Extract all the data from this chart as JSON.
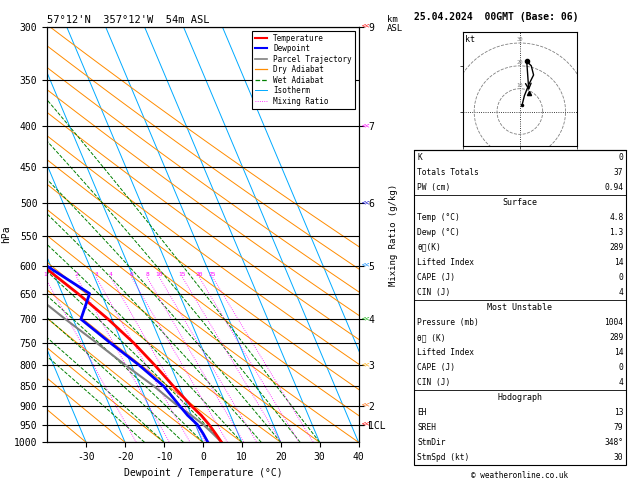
{
  "title_left": "57°12'N  357°12'W  54m ASL",
  "title_right": "25.04.2024  00GMT (Base: 06)",
  "xlabel": "Dewpoint / Temperature (°C)",
  "ylabel_left": "hPa",
  "ylabel_right_mr": "Mixing Ratio (g/kg)",
  "pressure_levels": [
    300,
    350,
    400,
    450,
    500,
    550,
    600,
    650,
    700,
    750,
    800,
    850,
    900,
    950,
    1000
  ],
  "T_min": -40,
  "T_max": 40,
  "skew_factor": 45,
  "temp_profile": {
    "pressure": [
      1000,
      975,
      950,
      925,
      900,
      850,
      800,
      750,
      700,
      650,
      600,
      550,
      500,
      450,
      400,
      350,
      300
    ],
    "temp": [
      4.8,
      4.2,
      3.5,
      2.5,
      1.0,
      -1.5,
      -4.0,
      -7.0,
      -11.0,
      -16.0,
      -22.0,
      -28.0,
      -34.0,
      -41.0,
      -49.0,
      -58.0,
      -48.0
    ]
  },
  "dewpoint_profile": {
    "pressure": [
      1000,
      975,
      950,
      925,
      900,
      850,
      800,
      750,
      700,
      650,
      600,
      550,
      500,
      450,
      400,
      350,
      300
    ],
    "temp": [
      1.3,
      1.0,
      0.5,
      -1.0,
      -2.0,
      -4.0,
      -8.0,
      -13.0,
      -18.0,
      -13.0,
      -21.0,
      -28.0,
      -34.0,
      -41.0,
      -49.0,
      -58.0,
      -48.0
    ]
  },
  "parcel_trajectory": {
    "pressure": [
      1000,
      975,
      950,
      925,
      900,
      850,
      800,
      750,
      700,
      650,
      600,
      550,
      500,
      450,
      400,
      350,
      300
    ],
    "temp": [
      4.8,
      3.5,
      2.0,
      0.0,
      -2.5,
      -6.5,
      -11.5,
      -16.5,
      -22.0,
      -27.5,
      -33.5,
      -39.5,
      -46.0,
      -52.5,
      -59.0,
      -65.0,
      -55.0
    ]
  },
  "colors": {
    "temperature": "#ff0000",
    "dewpoint": "#0000ff",
    "parcel": "#808080",
    "dry_adiabat": "#ff8c00",
    "wet_adiabat": "#008000",
    "isotherm": "#00aaff",
    "mixing_ratio": "#ff00ff",
    "isobar": "#000000",
    "background": "#ffffff"
  },
  "dry_adiabat_thetas": [
    -30,
    -20,
    -10,
    0,
    10,
    20,
    30,
    40,
    50,
    60,
    70,
    80,
    90,
    100,
    110,
    120
  ],
  "wet_adiabat_temps": [
    -15,
    -10,
    -5,
    0,
    5,
    10,
    15,
    20,
    25,
    30
  ],
  "mixing_ratio_lines": [
    1,
    2,
    3,
    4,
    6,
    8,
    10,
    15,
    20,
    25
  ],
  "km_ticks": {
    "pressures": [
      300,
      400,
      500,
      600,
      700,
      800,
      900,
      950
    ],
    "labels": [
      "9",
      "7",
      "6",
      "5",
      "4",
      "3",
      "2",
      "1"
    ]
  },
  "lcl_pressure": 952,
  "hodograph": {
    "u": [
      1,
      2,
      4,
      6,
      5,
      3
    ],
    "v": [
      3,
      7,
      12,
      16,
      20,
      22
    ],
    "storm_u": 4,
    "storm_v": 8
  },
  "stats": {
    "K": 0,
    "Totals_Totals": 37,
    "PW_cm": 0.94,
    "Surface_Temp": 4.8,
    "Surface_Dewp": 1.3,
    "Surface_theta_e": 289,
    "Surface_LI": 14,
    "Surface_CAPE": 0,
    "Surface_CIN": 4,
    "MU_Pressure": 1004,
    "MU_theta_e": 289,
    "MU_LI": 14,
    "MU_CAPE": 0,
    "MU_CIN": 4,
    "EH": 13,
    "SREH": 79,
    "StmDir": 348,
    "StmSpd": 30
  },
  "wind_barb_colors": [
    "#ff0000",
    "#ff00ff",
    "#0000cc",
    "#0088ff",
    "#00aa00",
    "#ffaa00",
    "#ff6600",
    "#ff0000"
  ],
  "wind_barb_pressures": [
    300,
    400,
    500,
    600,
    700,
    800,
    900,
    950
  ],
  "wind_barb_sizes": [
    3,
    2.5,
    2,
    2,
    2,
    2,
    1.5,
    1.5
  ]
}
